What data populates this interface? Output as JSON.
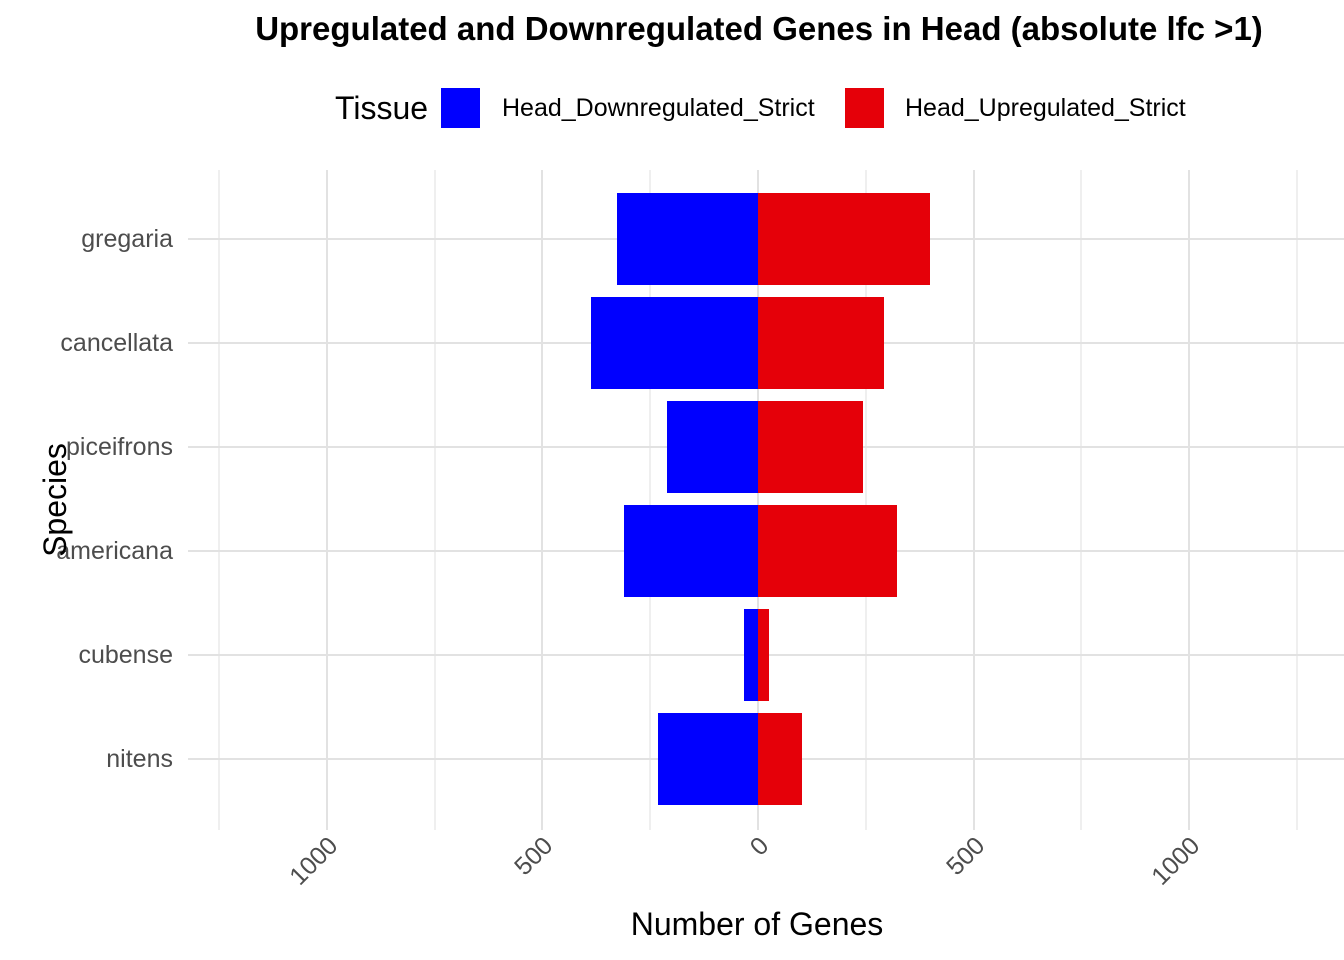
{
  "title": "Upregulated and Downregulated Genes in Head (absolute lfc >1)",
  "legend": {
    "title": "Tissue",
    "items": [
      {
        "label": "Head_Downregulated_Strict",
        "color": "#0000FF"
      },
      {
        "label": "Head_Upregulated_Strict",
        "color": "#E50009"
      }
    ]
  },
  "chart_data": {
    "type": "bar",
    "orientation": "horizontal_diverging",
    "title": "Upregulated and Downregulated Genes in Head (absolute lfc >1)",
    "categories": [
      "gregaria",
      "cancellata",
      "piceifrons",
      "americana",
      "cubense",
      "nitens"
    ],
    "series": [
      {
        "name": "Head_Downregulated_Strict",
        "color": "#0000FF",
        "side": "left",
        "values": [
          327,
          388,
          211,
          312,
          33,
          233
        ]
      },
      {
        "name": "Head_Upregulated_Strict",
        "color": "#E50009",
        "side": "right",
        "values": [
          398,
          291,
          244,
          322,
          25,
          103
        ]
      }
    ],
    "xlabel": "Number of Genes",
    "ylabel": "Species",
    "x_tick_values": [
      -1000,
      -500,
      0,
      500,
      1000
    ],
    "x_tick_labels": [
      "1000",
      "500",
      "0",
      "500",
      "1000"
    ],
    "xlim": [
      -1322,
      1359
    ],
    "minor_grid_step": 250,
    "grid": true,
    "legend_position": "top"
  },
  "colors": {
    "grid_major": "#E2E2E2",
    "grid_minor": "#EFEFEF",
    "axis_text": "#4D4D4D",
    "background": "#FFFFFF"
  }
}
